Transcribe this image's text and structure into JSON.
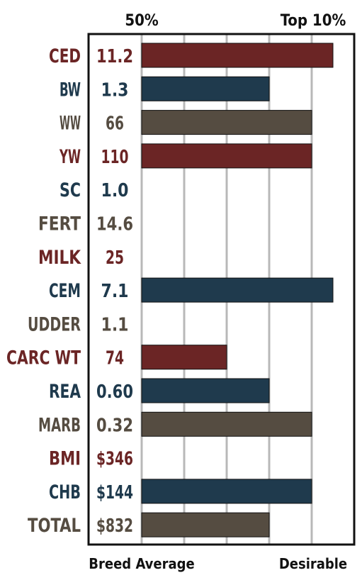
{
  "colors": {
    "maroon": "#6b2525",
    "navy": "#1f3a4d",
    "gray": "#554c41",
    "grid": "#b8b8b8",
    "frame": "#111111"
  },
  "header": {
    "left_label": "50%",
    "right_label": "Top 10%"
  },
  "footer": {
    "left_label": "Breed Average",
    "right_label": "Desirable"
  },
  "chart_data": {
    "type": "bar",
    "orientation": "horizontal",
    "x_scale_note": "bar length in grid units (0 = breed average, 4.5 = top 10%)",
    "xlim": [
      0,
      5
    ],
    "grid": true,
    "rows": [
      {
        "trait": "CED",
        "value": "11.2",
        "bar": 4.5,
        "color": "maroon"
      },
      {
        "trait": "BW",
        "value": "1.3",
        "bar": 3.0,
        "color": "navy"
      },
      {
        "trait": "WW",
        "value": "66",
        "bar": 4.0,
        "color": "gray"
      },
      {
        "trait": "YW",
        "value": "110",
        "bar": 4.0,
        "color": "maroon"
      },
      {
        "trait": "SC",
        "value": "1.0",
        "bar": 0,
        "color": "navy"
      },
      {
        "trait": "FERT",
        "value": "14.6",
        "bar": 0,
        "color": "gray"
      },
      {
        "trait": "MILK",
        "value": "25",
        "bar": 0,
        "color": "maroon"
      },
      {
        "trait": "CEM",
        "value": "7.1",
        "bar": 4.5,
        "color": "navy"
      },
      {
        "trait": "UDDER",
        "value": "1.1",
        "bar": 0,
        "color": "gray"
      },
      {
        "trait": "CARC WT",
        "value": "74",
        "bar": 2.0,
        "color": "maroon"
      },
      {
        "trait": "REA",
        "value": "0.60",
        "bar": 3.0,
        "color": "navy"
      },
      {
        "trait": "MARB",
        "value": "0.32",
        "bar": 4.0,
        "color": "gray"
      },
      {
        "trait": "BMI",
        "value": "$346",
        "bar": 0,
        "color": "maroon"
      },
      {
        "trait": "CHB",
        "value": "$144",
        "bar": 4.0,
        "color": "navy"
      },
      {
        "trait": "TOTAL",
        "value": "$832",
        "bar": 3.0,
        "color": "gray"
      }
    ]
  }
}
